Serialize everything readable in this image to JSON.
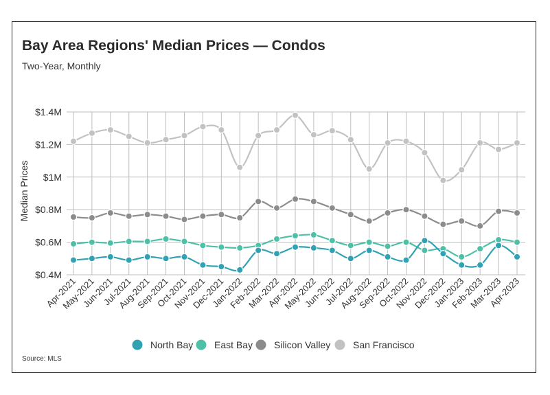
{
  "title": "Bay Area Regions' Median Prices — Condos",
  "subtitle": "Two-Year, Monthly",
  "source": "Source:  MLS",
  "chart_data": {
    "type": "line",
    "title": "Bay Area Regions' Median Prices — Condos",
    "subtitle": "Two-Year, Monthly",
    "xlabel": "",
    "ylabel": "Median Prices",
    "ylim": [
      0.4,
      1.4
    ],
    "yticks": [
      0.4,
      0.6,
      0.8,
      1.0,
      1.2,
      1.4
    ],
    "ytick_labels": [
      "$0.4M",
      "$0.6M",
      "$0.8M",
      "$1M",
      "$1.2M",
      "$1.4M"
    ],
    "grid": "vertical and horizontal",
    "legend_position": "bottom",
    "categories": [
      "Apr-2021",
      "May-2021",
      "Jun-2021",
      "Jul-2021",
      "Aug-2021",
      "Sep-2021",
      "Oct-2021",
      "Nov-2021",
      "Dec-2021",
      "Jan-2022",
      "Feb-2022",
      "Mar-2022",
      "Apr-2022",
      "May-2022",
      "Jun-2022",
      "Jul-2022",
      "Aug-2022",
      "Sep-2022",
      "Oct-2022",
      "Nov-2022",
      "Dec-2022",
      "Jan-2023",
      "Feb-2023",
      "Mar-2023",
      "Apr-2023"
    ],
    "series": [
      {
        "name": "North Bay",
        "color": "#31a2b3",
        "values": [
          0.49,
          0.5,
          0.51,
          0.49,
          0.51,
          0.5,
          0.51,
          0.46,
          0.45,
          0.43,
          0.55,
          0.53,
          0.57,
          0.565,
          0.55,
          0.5,
          0.55,
          0.51,
          0.49,
          0.61,
          0.53,
          0.46,
          0.46,
          0.58,
          0.51
        ]
      },
      {
        "name": "East Bay",
        "color": "#4fc0a8",
        "values": [
          0.59,
          0.6,
          0.595,
          0.605,
          0.605,
          0.62,
          0.605,
          0.58,
          0.57,
          0.565,
          0.58,
          0.62,
          0.64,
          0.645,
          0.61,
          0.58,
          0.6,
          0.575,
          0.6,
          0.55,
          0.56,
          0.51,
          0.56,
          0.615,
          0.6
        ]
      },
      {
        "name": "Silicon Valley",
        "color": "#8c8c8c",
        "values": [
          0.755,
          0.75,
          0.78,
          0.76,
          0.77,
          0.76,
          0.74,
          0.76,
          0.77,
          0.75,
          0.85,
          0.81,
          0.865,
          0.85,
          0.81,
          0.77,
          0.73,
          0.78,
          0.8,
          0.76,
          0.71,
          0.73,
          0.7,
          0.79,
          0.78
        ]
      },
      {
        "name": "San Francisco",
        "color": "#c2c2c2",
        "values": [
          1.22,
          1.27,
          1.29,
          1.25,
          1.21,
          1.23,
          1.255,
          1.31,
          1.29,
          1.06,
          1.255,
          1.29,
          1.38,
          1.26,
          1.285,
          1.23,
          1.05,
          1.21,
          1.22,
          1.15,
          0.98,
          1.045,
          1.21,
          1.17,
          1.21
        ]
      }
    ]
  }
}
